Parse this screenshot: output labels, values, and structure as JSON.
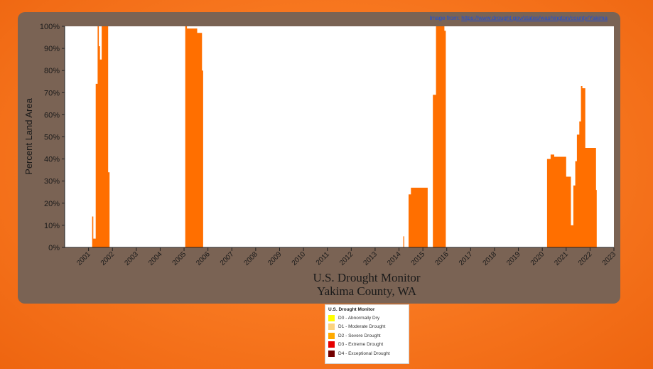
{
  "source_note": {
    "prefix": "Image from:",
    "url": "https://www.drought.gov/states/washington/county/Yakima"
  },
  "legend": {
    "title": "U.S. Drought Monitor",
    "items": [
      {
        "label": "D0 - Abnormally Dry",
        "color": "#ffff00"
      },
      {
        "label": "D1 - Moderate Drought",
        "color": "#fcd37f"
      },
      {
        "label": "D2 - Severe Drought",
        "color": "#ffaa00"
      },
      {
        "label": "D3 - Extreme Drought",
        "color": "#e60000"
      },
      {
        "label": "D4 - Exceptional Drought",
        "color": "#730000"
      }
    ]
  },
  "chart_data": {
    "type": "area",
    "title": "U.S. Drought Monitor",
    "subtitle": "Yakima County, WA",
    "xlabel": "",
    "ylabel": "Percent Land Area",
    "xlim": [
      2000.0,
      2023.0
    ],
    "ylim": [
      0,
      100
    ],
    "y_ticks": [
      0,
      10,
      20,
      30,
      40,
      50,
      60,
      70,
      80,
      90,
      100
    ],
    "y_tick_suffix": "%",
    "x_ticks": [
      2001,
      2002,
      2003,
      2004,
      2005,
      2006,
      2007,
      2008,
      2009,
      2010,
      2011,
      2012,
      2013,
      2014,
      2015,
      2016,
      2017,
      2018,
      2019,
      2020,
      2021,
      2022,
      2023
    ],
    "grid": false,
    "fill_color": "#ff6f00",
    "series": [
      {
        "x": [
          2001.15,
          2001.15,
          2001.2,
          2001.2,
          2001.3,
          2001.3,
          2001.38,
          2001.38,
          2001.43,
          2001.43,
          2001.48,
          2001.48,
          2001.55,
          2001.55,
          2001.6,
          2001.6,
          2001.7,
          2001.7,
          2001.82,
          2001.82,
          2001.88,
          2001.88,
          2001.91,
          2001.91,
          2005.05,
          2005.05,
          2005.12,
          2005.12,
          2005.55,
          2005.55,
          2005.75,
          2005.75,
          2005.8,
          2005.8,
          2005.85,
          2005.85,
          2014.18,
          2014.18,
          2014.22,
          2014.22,
          2014.4,
          2014.4,
          2014.5,
          2014.5,
          2015.2,
          2015.2,
          2015.42,
          2015.42,
          2015.55,
          2015.55,
          2015.9,
          2015.9,
          2015.96,
          2015.96,
          2020.2,
          2020.2,
          2020.35,
          2020.35,
          2020.5,
          2020.5,
          2021.0,
          2021.0,
          2021.2,
          2021.2,
          2021.3,
          2021.3,
          2021.38,
          2021.38,
          2021.45,
          2021.45,
          2021.55,
          2021.55,
          2021.62,
          2021.62,
          2021.68,
          2021.68,
          2021.72,
          2021.72,
          2021.8,
          2021.8,
          2021.95,
          2021.95,
          2022.1,
          2022.1,
          2022.25,
          2022.25,
          2022.28,
          2022.28
        ],
        "y": [
          0,
          14,
          14,
          4,
          4,
          74,
          74,
          100,
          100,
          91,
          91,
          85,
          85,
          100,
          100,
          100,
          100,
          100,
          100,
          34,
          34,
          0,
          0,
          0,
          0,
          100,
          100,
          99,
          99,
          97,
          97,
          80,
          80,
          0,
          0,
          0,
          0,
          5,
          5,
          0,
          0,
          24,
          24,
          27,
          27,
          0,
          0,
          69,
          69,
          100,
          100,
          98,
          98,
          0,
          0,
          40,
          40,
          42,
          42,
          41,
          41,
          32,
          32,
          10,
          10,
          28,
          28,
          39,
          39,
          51,
          51,
          57,
          57,
          73,
          73,
          72,
          72,
          72,
          72,
          45,
          45,
          45,
          45,
          45,
          45,
          26,
          26,
          0
        ]
      }
    ]
  }
}
